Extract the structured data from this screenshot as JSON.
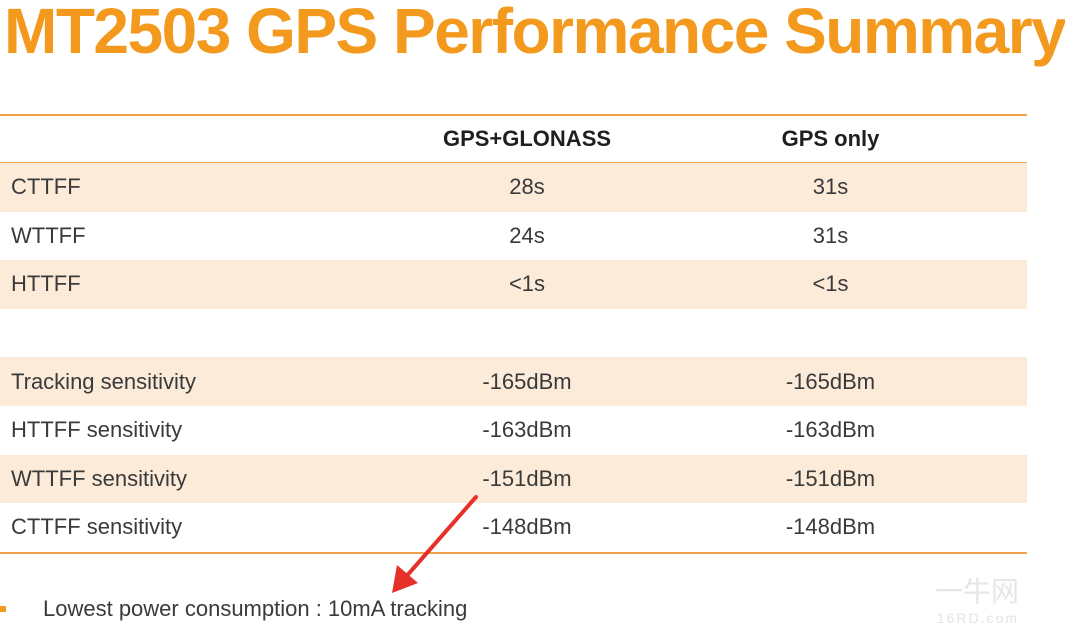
{
  "title": "MT2503 GPS Performance Summary",
  "table": {
    "headers": [
      "",
      "GPS+GLONASS",
      "GPS only"
    ],
    "rows": [
      {
        "label": "CTTFF",
        "a": "28s",
        "b": "31s"
      },
      {
        "label": "WTTFF",
        "a": "24s",
        "b": "31s"
      },
      {
        "label": "HTTFF",
        "a": "<1s",
        "b": "<1s"
      },
      {
        "label": "Tracking sensitivity",
        "a": "-165dBm",
        "b": "-165dBm"
      },
      {
        "label": "HTTFF sensitivity",
        "a": "-163dBm",
        "b": "-163dBm"
      },
      {
        "label": "WTTFF sensitivity",
        "a": "-151dBm",
        "b": "-151dBm"
      },
      {
        "label": "CTTFF sensitivity",
        "a": "-148dBm",
        "b": "-148dBm"
      }
    ]
  },
  "note": "Lowest power consumption : 10mA tracking",
  "watermark": {
    "main": "一牛网",
    "sub": "16RD.com"
  },
  "colors": {
    "accent": "#f39a1e",
    "shade": "#fcebd9",
    "arrow": "#e8302a"
  }
}
